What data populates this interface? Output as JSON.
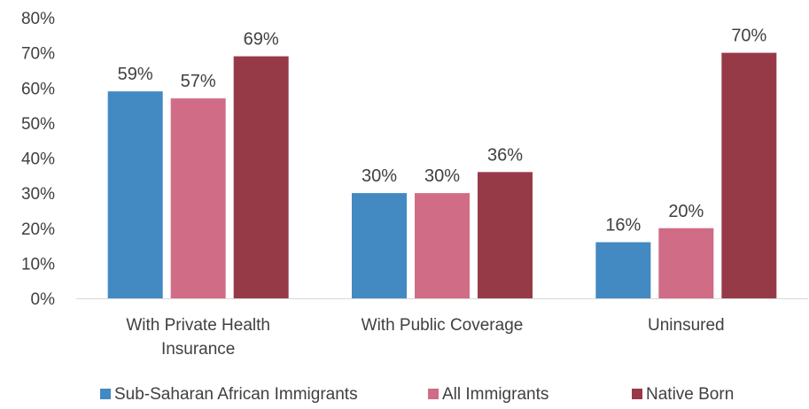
{
  "chart_data": {
    "type": "bar",
    "categories": [
      [
        "With Private Health",
        "Insurance"
      ],
      [
        "With Public Coverage"
      ],
      [
        "Uninsured"
      ]
    ],
    "series": [
      {
        "name": "Sub-Saharan African Immigrants",
        "color": "#4389C2",
        "values": [
          59,
          30,
          16
        ],
        "labels": [
          "59%",
          "30%",
          "16%"
        ]
      },
      {
        "name": "All Immigrants",
        "color": "#D06C86",
        "values": [
          57,
          30,
          20
        ],
        "labels": [
          "57%",
          "30%",
          "20%"
        ]
      },
      {
        "name": "Native Born",
        "color": "#973A48",
        "values": [
          69,
          36,
          70
        ],
        "labels": [
          "69%",
          "36%",
          "70%"
        ]
      }
    ],
    "y_ticks": [
      "0%",
      "10%",
      "20%",
      "30%",
      "40%",
      "50%",
      "60%",
      "70%",
      "80%"
    ],
    "ylim": [
      0,
      80
    ],
    "grid": false,
    "legend_position": "bottom"
  }
}
